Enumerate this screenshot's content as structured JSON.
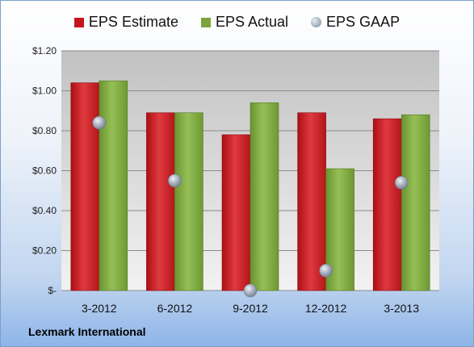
{
  "chart_data": {
    "type": "bar",
    "categories": [
      "3-2012",
      "6-2012",
      "9-2012",
      "12-2012",
      "3-2013"
    ],
    "series": [
      {
        "name": "EPS Estimate",
        "values": [
          1.04,
          0.89,
          0.78,
          0.89,
          0.86
        ],
        "color": "#c4161c"
      },
      {
        "name": "EPS Actual",
        "values": [
          1.05,
          0.89,
          0.94,
          0.61,
          0.88
        ],
        "color": "#7aa53a"
      },
      {
        "name": "EPS GAAP",
        "values": [
          0.84,
          0.55,
          0.0,
          0.1,
          0.54
        ],
        "color": "#9aa6b4",
        "marker": "circle"
      }
    ],
    "ylim": [
      0,
      1.2
    ],
    "yticks": [
      0,
      0.2,
      0.4,
      0.6,
      0.8,
      1.0,
      1.2
    ],
    "ytick_labels": [
      "$-",
      "$0.20",
      "$0.40",
      "$0.60",
      "$0.80",
      "$1.00",
      "$1.20"
    ],
    "grid": true,
    "legend_position": "top"
  },
  "footer": {
    "source": "Lexmark International"
  }
}
